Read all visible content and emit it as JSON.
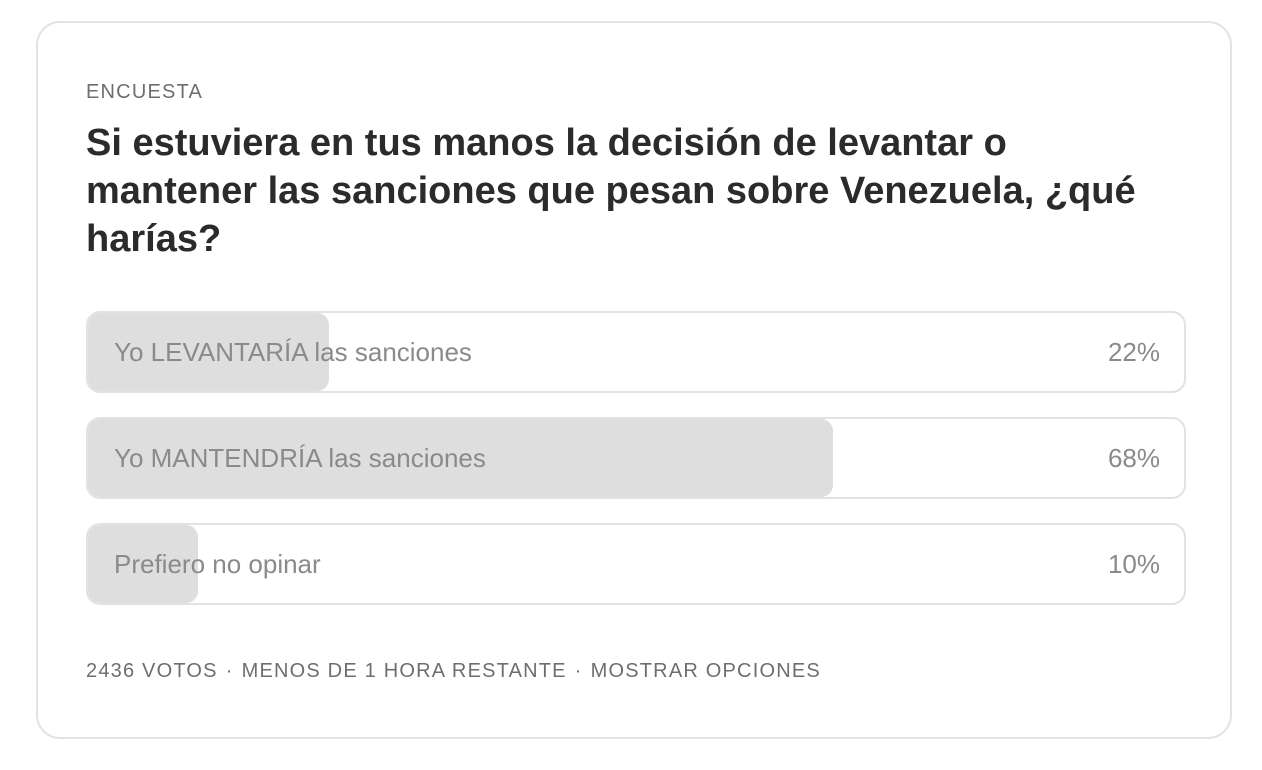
{
  "poll": {
    "label": "ENCUESTA",
    "question": "Si estuviera en tus manos la decisión de levantar o mantener las sanciones que pesan sobre Venezuela, ¿qué harías?",
    "options": [
      {
        "text": "Yo LEVANTARÍA las sanciones",
        "percent_label": "22%",
        "percent": 22
      },
      {
        "text": "Yo MANTENDRÍA las sanciones",
        "percent_label": "68%",
        "percent": 68
      },
      {
        "text": "Prefiero no opinar",
        "percent_label": "10%",
        "percent": 10
      }
    ],
    "footer": {
      "votes": "2436 VOTOS",
      "separator": "·",
      "time_left": "MENOS DE 1 HORA RESTANTE",
      "show_options": "MOSTRAR OPCIONES"
    }
  },
  "colors": {
    "bar_fill": "#dedede",
    "border": "#e2e2e2",
    "question_text": "#2b2b2b",
    "muted_text": "#6e6e6e"
  }
}
